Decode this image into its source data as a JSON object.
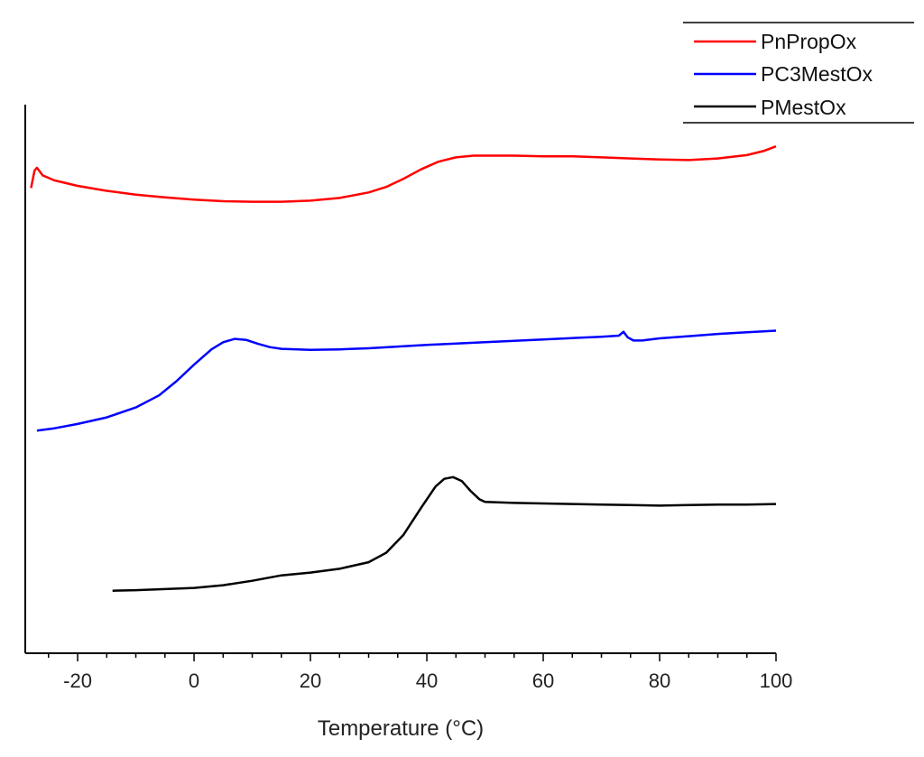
{
  "chart_data": {
    "type": "line",
    "title": "",
    "xlabel": "Temperature (°C)",
    "ylabel": "",
    "xlim": [
      -29,
      100
    ],
    "ylim": [
      0,
      100
    ],
    "x_ticks": [
      -20,
      0,
      20,
      40,
      60,
      80,
      100
    ],
    "x_tick_labels": [
      "-20",
      "0",
      "20",
      "40",
      "60",
      "80",
      "100"
    ],
    "y_ticks_shown": false,
    "grid": false,
    "legend_position": "top-right",
    "series": [
      {
        "name": "PnPropOx",
        "color": "#ff0000",
        "points": [
          [
            -28,
            84.8
          ],
          [
            -27.4,
            88.0
          ],
          [
            -27,
            88.5
          ],
          [
            -26,
            87.1
          ],
          [
            -24,
            86.2
          ],
          [
            -20,
            85.2
          ],
          [
            -15,
            84.3
          ],
          [
            -10,
            83.6
          ],
          [
            -5,
            83.1
          ],
          [
            0,
            82.7
          ],
          [
            5,
            82.4
          ],
          [
            10,
            82.3
          ],
          [
            15,
            82.3
          ],
          [
            20,
            82.5
          ],
          [
            25,
            83.0
          ],
          [
            30,
            84.0
          ],
          [
            33,
            85.0
          ],
          [
            36,
            86.5
          ],
          [
            39,
            88.2
          ],
          [
            42,
            89.6
          ],
          [
            45,
            90.4
          ],
          [
            48,
            90.7
          ],
          [
            55,
            90.7
          ],
          [
            60,
            90.6
          ],
          [
            65,
            90.6
          ],
          [
            70,
            90.4
          ],
          [
            75,
            90.2
          ],
          [
            80,
            90.0
          ],
          [
            85,
            89.9
          ],
          [
            90,
            90.2
          ],
          [
            95,
            90.8
          ],
          [
            98,
            91.6
          ],
          [
            100,
            92.4
          ]
        ]
      },
      {
        "name": "PC3MestOx",
        "color": "#0000ff",
        "points": [
          [
            -27,
            40.6
          ],
          [
            -24,
            41.0
          ],
          [
            -20,
            41.8
          ],
          [
            -15,
            43.0
          ],
          [
            -10,
            44.8
          ],
          [
            -6,
            47.0
          ],
          [
            -3,
            49.6
          ],
          [
            0,
            52.6
          ],
          [
            3,
            55.4
          ],
          [
            5,
            56.7
          ],
          [
            7,
            57.3
          ],
          [
            9,
            57.1
          ],
          [
            11,
            56.4
          ],
          [
            13,
            55.8
          ],
          [
            15,
            55.5
          ],
          [
            20,
            55.3
          ],
          [
            25,
            55.4
          ],
          [
            30,
            55.6
          ],
          [
            40,
            56.2
          ],
          [
            50,
            56.7
          ],
          [
            60,
            57.2
          ],
          [
            70,
            57.7
          ],
          [
            73,
            57.9
          ],
          [
            73.8,
            58.6
          ],
          [
            74.5,
            57.6
          ],
          [
            75.5,
            57.0
          ],
          [
            77,
            57.0
          ],
          [
            80,
            57.4
          ],
          [
            85,
            57.8
          ],
          [
            90,
            58.2
          ],
          [
            95,
            58.5
          ],
          [
            100,
            58.8
          ]
        ]
      },
      {
        "name": "PMestOx",
        "color": "#000000",
        "points": [
          [
            -14,
            11.4
          ],
          [
            -10,
            11.5
          ],
          [
            -5,
            11.7
          ],
          [
            0,
            11.9
          ],
          [
            5,
            12.4
          ],
          [
            10,
            13.2
          ],
          [
            15,
            14.2
          ],
          [
            20,
            14.7
          ],
          [
            25,
            15.4
          ],
          [
            30,
            16.6
          ],
          [
            33,
            18.3
          ],
          [
            36,
            21.6
          ],
          [
            39,
            26.5
          ],
          [
            41.5,
            30.4
          ],
          [
            43,
            31.8
          ],
          [
            44.5,
            32.1
          ],
          [
            46,
            31.4
          ],
          [
            47.5,
            29.6
          ],
          [
            49,
            28.1
          ],
          [
            50,
            27.6
          ],
          [
            55,
            27.4
          ],
          [
            60,
            27.3
          ],
          [
            65,
            27.2
          ],
          [
            70,
            27.1
          ],
          [
            75,
            27.0
          ],
          [
            80,
            26.9
          ],
          [
            85,
            27.0
          ],
          [
            90,
            27.1
          ],
          [
            95,
            27.1
          ],
          [
            100,
            27.2
          ]
        ]
      }
    ]
  }
}
